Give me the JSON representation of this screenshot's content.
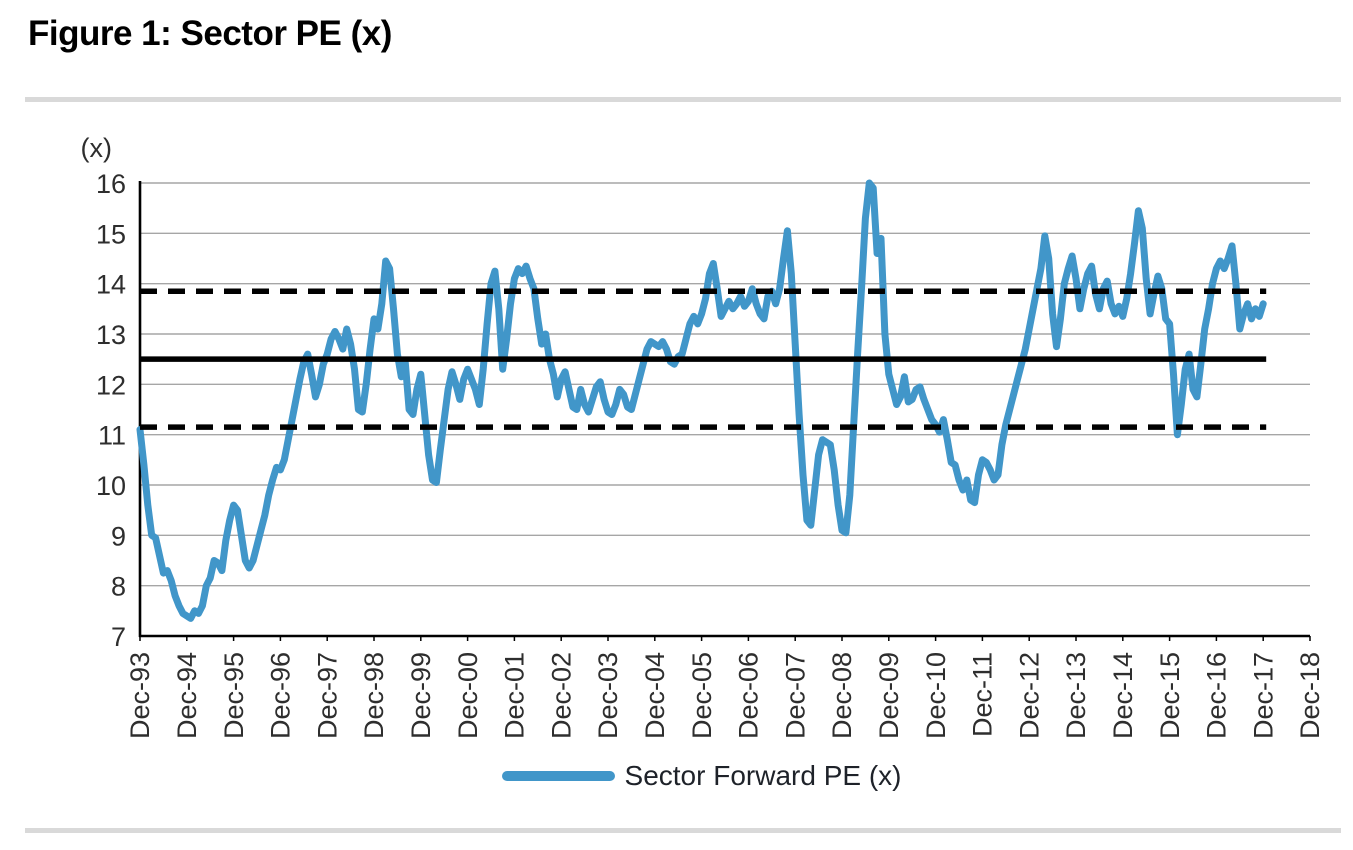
{
  "colors": {
    "series": "#4196C9",
    "reference": "#000000",
    "grid": "#A6A6A6",
    "axis": "#000000",
    "separator": "#D9D9D9",
    "title_text": "#000000",
    "tick_text": "#2E2E2E"
  },
  "chart_data": {
    "type": "line",
    "title": "Figure 1: Sector PE (x)",
    "y_axis": {
      "label": "(x)",
      "range": [
        7,
        16
      ],
      "ticks": [
        7,
        8,
        9,
        10,
        11,
        12,
        13,
        14,
        15,
        16
      ]
    },
    "x_axis": {
      "tick_labels": [
        "Dec-93",
        "Dec-94",
        "Dec-95",
        "Dec-96",
        "Dec-97",
        "Dec-98",
        "Dec-99",
        "Dec-00",
        "Dec-01",
        "Dec-02",
        "Dec-03",
        "Dec-04",
        "Dec-05",
        "Dec-06",
        "Dec-07",
        "Dec-08",
        "Dec-09",
        "Dec-10",
        "Dec-11",
        "Dec-12",
        "Dec-13",
        "Dec-14",
        "Dec-15",
        "Dec-16",
        "Dec-17",
        "Dec-18"
      ]
    },
    "grid": "horizontal",
    "legend_position": "bottom",
    "legend": [
      {
        "label": "Sector Forward PE (x)",
        "swatch": "thick-line",
        "color": "#4196C9"
      }
    ],
    "reference_lines": [
      {
        "name": "mean",
        "value": 12.5,
        "style": "solid",
        "color": "#000000"
      },
      {
        "name": "plus-1sd",
        "value": 13.85,
        "style": "dashed",
        "color": "#000000"
      },
      {
        "name": "minus-1sd",
        "value": 11.15,
        "style": "dashed",
        "color": "#000000"
      }
    ],
    "series": [
      {
        "name": "Sector Forward PE (x)",
        "color": "#4196C9",
        "start": "Dec-93",
        "frequency": "monthly",
        "values": [
          11.1,
          10.4,
          9.6,
          9.0,
          8.95,
          8.6,
          8.25,
          8.3,
          8.1,
          7.8,
          7.6,
          7.45,
          7.4,
          7.35,
          7.5,
          7.45,
          7.6,
          8.0,
          8.15,
          8.5,
          8.45,
          8.3,
          8.9,
          9.3,
          9.6,
          9.5,
          9.0,
          8.5,
          8.35,
          8.5,
          8.8,
          9.1,
          9.4,
          9.8,
          10.1,
          10.35,
          10.3,
          10.5,
          10.9,
          11.3,
          11.7,
          12.1,
          12.45,
          12.6,
          12.2,
          11.75,
          12.0,
          12.4,
          12.6,
          12.9,
          13.05,
          12.9,
          12.7,
          13.1,
          12.8,
          12.3,
          11.5,
          11.45,
          12.0,
          12.7,
          13.3,
          13.1,
          13.6,
          14.45,
          14.3,
          13.5,
          12.6,
          12.15,
          12.45,
          11.5,
          11.4,
          11.9,
          12.2,
          11.4,
          10.6,
          10.1,
          10.05,
          10.7,
          11.3,
          11.9,
          12.25,
          12.0,
          11.7,
          12.1,
          12.3,
          12.1,
          11.9,
          11.6,
          12.3,
          13.2,
          14.0,
          14.25,
          13.5,
          12.3,
          12.9,
          13.6,
          14.1,
          14.3,
          14.2,
          14.35,
          14.1,
          13.9,
          13.3,
          12.8,
          13.0,
          12.5,
          12.2,
          11.75,
          12.1,
          12.25,
          11.9,
          11.55,
          11.5,
          11.9,
          11.6,
          11.45,
          11.7,
          11.95,
          12.05,
          11.7,
          11.45,
          11.4,
          11.6,
          11.9,
          11.8,
          11.55,
          11.5,
          11.8,
          12.1,
          12.4,
          12.7,
          12.85,
          12.8,
          12.75,
          12.85,
          12.7,
          12.45,
          12.4,
          12.55,
          12.6,
          12.9,
          13.2,
          13.35,
          13.2,
          13.4,
          13.7,
          14.2,
          14.4,
          13.9,
          13.35,
          13.5,
          13.65,
          13.5,
          13.6,
          13.75,
          13.55,
          13.65,
          13.9,
          13.6,
          13.4,
          13.3,
          13.75,
          13.85,
          13.6,
          13.9,
          14.5,
          15.05,
          14.2,
          12.8,
          11.4,
          10.2,
          9.3,
          9.2,
          9.9,
          10.6,
          10.9,
          10.85,
          10.8,
          10.3,
          9.6,
          9.1,
          9.05,
          9.8,
          11.2,
          12.6,
          13.9,
          15.3,
          16.0,
          15.9,
          14.6,
          14.9,
          13.0,
          12.2,
          11.9,
          11.6,
          11.75,
          12.15,
          11.65,
          11.7,
          11.9,
          11.95,
          11.7,
          11.5,
          11.3,
          11.2,
          11.05,
          11.3,
          10.9,
          10.45,
          10.4,
          10.1,
          9.9,
          10.1,
          9.7,
          9.65,
          10.2,
          10.5,
          10.45,
          10.3,
          10.1,
          10.2,
          10.8,
          11.2,
          11.5,
          11.8,
          12.1,
          12.4,
          12.7,
          13.1,
          13.5,
          13.9,
          14.3,
          14.95,
          14.5,
          13.4,
          12.75,
          13.3,
          14.0,
          14.3,
          14.55,
          14.1,
          13.5,
          13.9,
          14.2,
          14.35,
          13.8,
          13.5,
          13.9,
          14.05,
          13.6,
          13.4,
          13.55,
          13.35,
          13.7,
          14.2,
          14.8,
          15.45,
          15.1,
          14.1,
          13.4,
          13.8,
          14.15,
          13.9,
          13.3,
          13.2,
          12.2,
          11.0,
          11.6,
          12.3,
          12.6,
          11.9,
          11.75,
          12.4,
          13.1,
          13.5,
          14.0,
          14.3,
          14.45,
          14.3,
          14.5,
          14.75,
          14.0,
          13.1,
          13.4,
          13.6,
          13.3,
          13.5,
          13.35,
          13.6
        ]
      }
    ]
  }
}
